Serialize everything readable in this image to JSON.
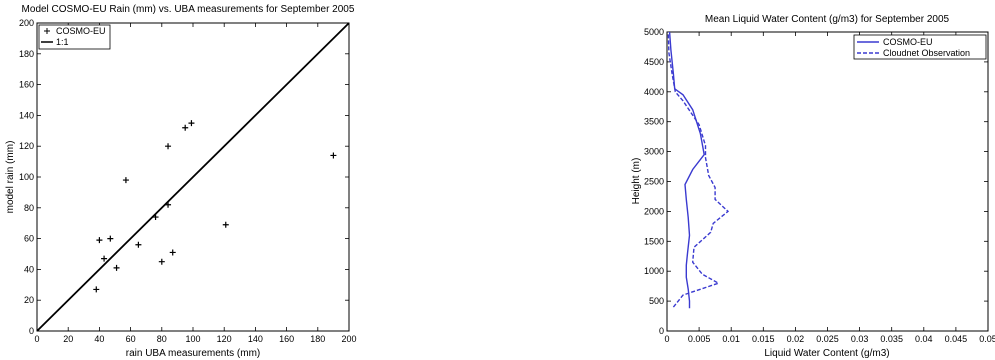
{
  "chart_data": [
    {
      "type": "scatter",
      "title": "Model COSMO-EU Rain (mm) vs. UBA measurements for September 2005",
      "xlabel": "rain UBA measurements (mm)",
      "ylabel": "model rain (mm)",
      "xlim": [
        0,
        200
      ],
      "ylim": [
        0,
        200
      ],
      "xticks": [
        0,
        20,
        40,
        60,
        80,
        100,
        120,
        140,
        160,
        180,
        200
      ],
      "yticks": [
        0,
        20,
        40,
        60,
        80,
        100,
        120,
        140,
        160,
        180,
        200
      ],
      "grid": false,
      "legend_position": "top-left",
      "series": [
        {
          "name": "COSMO-EU",
          "marker": "+",
          "color": "#000000",
          "points": [
            {
              "x": 38,
              "y": 27
            },
            {
              "x": 40,
              "y": 59
            },
            {
              "x": 43,
              "y": 47
            },
            {
              "x": 47,
              "y": 60
            },
            {
              "x": 51,
              "y": 41
            },
            {
              "x": 57,
              "y": 98
            },
            {
              "x": 65,
              "y": 56
            },
            {
              "x": 76,
              "y": 74
            },
            {
              "x": 80,
              "y": 45
            },
            {
              "x": 84,
              "y": 82
            },
            {
              "x": 84,
              "y": 120
            },
            {
              "x": 87,
              "y": 51
            },
            {
              "x": 95,
              "y": 132
            },
            {
              "x": 99,
              "y": 135
            },
            {
              "x": 121,
              "y": 69
            },
            {
              "x": 190,
              "y": 114
            }
          ]
        },
        {
          "name": "1:1",
          "style": "solid",
          "color": "#000000",
          "points": [
            {
              "x": 0,
              "y": 0
            },
            {
              "x": 200,
              "y": 200
            }
          ]
        }
      ]
    },
    {
      "type": "line",
      "title": "Mean Liquid Water Content (g/m3) for September 2005",
      "xlabel": "Liquid Water Content (g/m3)",
      "ylabel": "Height (m)",
      "xlim": [
        0,
        0.05
      ],
      "ylim": [
        0,
        5000
      ],
      "xticks": [
        "0",
        "0.005",
        "0.01",
        "0.015",
        "0.02",
        "0.025",
        "0.03",
        "0.035",
        "0.04",
        "0.045",
        "0.05"
      ],
      "yticks": [
        0,
        500,
        1000,
        1500,
        2000,
        2500,
        3000,
        3500,
        4000,
        4500,
        5000
      ],
      "grid": false,
      "legend_position": "top-right",
      "series": [
        {
          "name": "COSMO-EU",
          "style": "solid",
          "color": "#3a3ad0",
          "points": [
            {
              "x": 0.0035,
              "y": 380
            },
            {
              "x": 0.0035,
              "y": 500
            },
            {
              "x": 0.0033,
              "y": 700
            },
            {
              "x": 0.003,
              "y": 900
            },
            {
              "x": 0.003,
              "y": 1100
            },
            {
              "x": 0.0032,
              "y": 1300
            },
            {
              "x": 0.0035,
              "y": 1600
            },
            {
              "x": 0.0033,
              "y": 1900
            },
            {
              "x": 0.003,
              "y": 2200
            },
            {
              "x": 0.0028,
              "y": 2450
            },
            {
              "x": 0.004,
              "y": 2700
            },
            {
              "x": 0.0058,
              "y": 2950
            },
            {
              "x": 0.0052,
              "y": 3300
            },
            {
              "x": 0.004,
              "y": 3700
            },
            {
              "x": 0.0025,
              "y": 3950
            },
            {
              "x": 0.0012,
              "y": 4050
            },
            {
              "x": 0.001,
              "y": 4300
            },
            {
              "x": 0.0006,
              "y": 4700
            },
            {
              "x": 0.0004,
              "y": 5000
            }
          ]
        },
        {
          "name": "Cloudnet Observation",
          "style": "dashed",
          "color": "#3a3ad0",
          "points": [
            {
              "x": 0.001,
              "y": 400
            },
            {
              "x": 0.0025,
              "y": 600
            },
            {
              "x": 0.008,
              "y": 800
            },
            {
              "x": 0.0055,
              "y": 950
            },
            {
              "x": 0.004,
              "y": 1150
            },
            {
              "x": 0.0042,
              "y": 1400
            },
            {
              "x": 0.0068,
              "y": 1650
            },
            {
              "x": 0.0072,
              "y": 1800
            },
            {
              "x": 0.0095,
              "y": 2000
            },
            {
              "x": 0.0075,
              "y": 2200
            },
            {
              "x": 0.0075,
              "y": 2400
            },
            {
              "x": 0.0065,
              "y": 2600
            },
            {
              "x": 0.006,
              "y": 2900
            },
            {
              "x": 0.006,
              "y": 3100
            },
            {
              "x": 0.005,
              "y": 3450
            },
            {
              "x": 0.0025,
              "y": 3850
            },
            {
              "x": 0.0013,
              "y": 4000
            },
            {
              "x": 0.0008,
              "y": 4300
            },
            {
              "x": 0.0003,
              "y": 4650
            },
            {
              "x": 0.0002,
              "y": 5000
            }
          ]
        }
      ]
    }
  ]
}
